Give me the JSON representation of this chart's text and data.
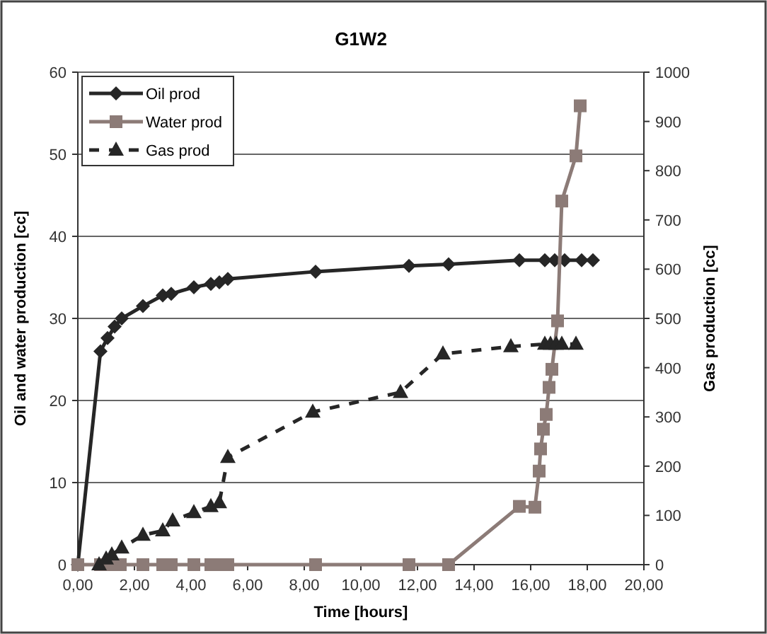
{
  "chart_data": {
    "type": "line",
    "title": "G1W2",
    "xlabel": "Time [hours]",
    "ylabel": "Oil and water production [cc]",
    "y2label": "Gas production [cc]",
    "xlim": [
      0,
      20
    ],
    "xticks": [
      {
        "value": 0,
        "label": "0,00"
      },
      {
        "value": 2,
        "label": "2,00"
      },
      {
        "value": 4,
        "label": "4,00"
      },
      {
        "value": 6,
        "label": "6,00"
      },
      {
        "value": 8,
        "label": "8,00"
      },
      {
        "value": 10,
        "label": "10,00"
      },
      {
        "value": 12,
        "label": "12,00"
      },
      {
        "value": 14,
        "label": "14,00"
      },
      {
        "value": 16,
        "label": "16,00"
      },
      {
        "value": 18,
        "label": "18,00"
      },
      {
        "value": 20,
        "label": "20,00"
      }
    ],
    "ylim": [
      0,
      60
    ],
    "yticks": [
      0,
      10,
      20,
      30,
      40,
      50,
      60
    ],
    "y2lim": [
      0,
      1000
    ],
    "y2ticks": [
      0,
      100,
      200,
      300,
      400,
      500,
      600,
      700,
      800,
      900,
      1000
    ],
    "grid": "y",
    "legend": "top left",
    "series": [
      {
        "name": "Oil prod",
        "color": "#262626",
        "marker": "diamond",
        "line_style": "solid",
        "x": [
          0,
          0.8,
          1.05,
          1.3,
          1.55,
          2.3,
          3.0,
          3.3,
          4.1,
          4.7,
          5.0,
          5.3,
          8.4,
          11.7,
          13.1,
          15.6,
          16.5,
          16.85,
          17.2,
          17.8,
          18.2
        ],
        "values": [
          0,
          26,
          27.6,
          29,
          30,
          31.5,
          32.8,
          33,
          33.8,
          34.2,
          34.4,
          34.8,
          35.7,
          36.4,
          36.6,
          37.1,
          37.1,
          37.1,
          37.1,
          37.1,
          37.1
        ]
      },
      {
        "name": "Water prod",
        "color": "#8c7b77",
        "marker": "square",
        "line_style": "solid",
        "x": [
          0,
          0.8,
          1.0,
          1.2,
          1.5,
          2.3,
          3.0,
          3.3,
          4.1,
          4.7,
          5.0,
          5.3,
          8.4,
          11.7,
          13.1,
          15.6,
          16.15,
          16.3,
          16.35,
          16.45,
          16.55,
          16.65,
          16.75,
          16.95,
          17.1,
          17.6,
          17.75
        ],
        "values": [
          0,
          0,
          0,
          0,
          0,
          0,
          0,
          0,
          0,
          0,
          0,
          0,
          0,
          0,
          0,
          7.1,
          7,
          11.4,
          14.1,
          16.5,
          18.3,
          21.6,
          23.8,
          29.7,
          44.3,
          49.8,
          55.9
        ]
      },
      {
        "name": "Gas prod",
        "color": "#262626",
        "marker": "triangle",
        "line_style": "dashed",
        "axis": "y2",
        "x": [
          0.75,
          1.0,
          1.2,
          1.55,
          2.3,
          3.0,
          3.35,
          4.1,
          4.7,
          5.0,
          5.3,
          8.3,
          11.4,
          12.9,
          15.3,
          16.5,
          16.7,
          16.9,
          17.1,
          17.6
        ],
        "values": [
          0,
          12,
          20,
          34,
          60,
          69,
          89,
          106,
          118,
          126,
          218,
          310,
          350,
          428,
          443,
          448,
          448,
          448,
          448,
          448
        ]
      }
    ]
  }
}
